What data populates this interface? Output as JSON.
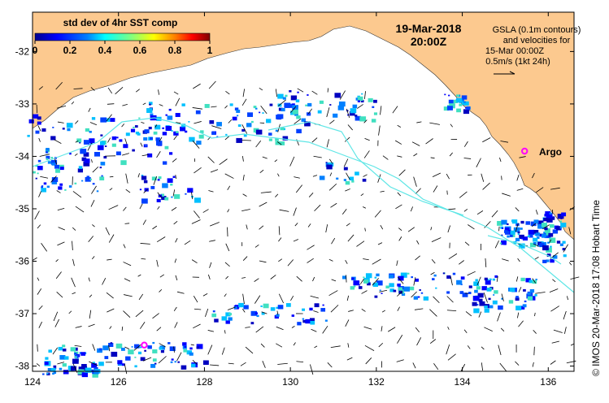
{
  "map": {
    "date": "19-Mar-2018",
    "time": "20:00Z",
    "legend": {
      "colorbar_title": "std dev of 4hr SST comp",
      "ticks": [
        "0",
        "0.2",
        "0.4",
        "0.6",
        "0.8",
        "1"
      ],
      "ticks_values": [
        0,
        0.2,
        0.4,
        0.6,
        0.8,
        1
      ],
      "colormap": [
        "#00008f",
        "#0000ff",
        "#0080ff",
        "#00ffff",
        "#80ff80",
        "#ffff00",
        "#ff8000",
        "#ff0000",
        "#800000"
      ]
    },
    "gsla_note": {
      "line1": "GSLA (0.1m contours)",
      "line2": "and velocities for",
      "line3": "15-Mar 00:00Z",
      "line4": "0.5m/s (1kt 24h)"
    },
    "argo_label": "Argo",
    "credit": "© IMOS 20-Mar-2018 17:08 Hobart Time",
    "x_ticks": [
      "124",
      "126",
      "128",
      "130",
      "132",
      "134",
      "136"
    ],
    "x_values": [
      124,
      126,
      128,
      130,
      132,
      134,
      136
    ],
    "y_ticks": [
      "-32",
      "-33",
      "-34",
      "-35",
      "-36",
      "-37",
      "-38"
    ],
    "y_values": [
      -32,
      -33,
      -34,
      -35,
      -36,
      -37,
      -38
    ],
    "x_range": [
      124,
      136.6
    ],
    "y_range": [
      -38.1,
      -31.25
    ],
    "colors": {
      "land": "#fcc98f",
      "ocean": "#ffffff",
      "contour": "#5fe6e6",
      "argo": "#ff00ff"
    },
    "argo_floats": [
      {
        "lon": 135.45,
        "lat": -33.9
      },
      {
        "lon": 126.6,
        "lat": -37.6
      }
    ]
  }
}
